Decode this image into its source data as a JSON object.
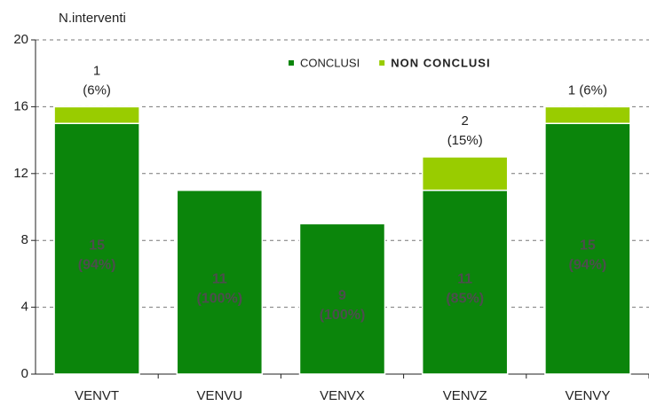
{
  "chart_data": {
    "type": "stacked_bar",
    "y_axis_label": "N.interventi",
    "categories": [
      "VENVT",
      "VENVU",
      "VENVX",
      "VENVZ",
      "VENVY"
    ],
    "series": [
      {
        "name": "CONCLUSI",
        "color": "#0b850b",
        "values": [
          15,
          11,
          9,
          11,
          15
        ],
        "value_labels": [
          [
            "15",
            "(94%)"
          ],
          [
            "11",
            "(100%)"
          ],
          [
            "9",
            "(100%)"
          ],
          [
            "11",
            "(85%)"
          ],
          [
            "15",
            "(94%)"
          ]
        ]
      },
      {
        "name": "NON CONCLUSI",
        "color": "#99cc00",
        "values": [
          1,
          null,
          null,
          2,
          1
        ],
        "value_labels": [
          [
            "1",
            "(6%)"
          ],
          null,
          null,
          [
            "2",
            "(15%)"
          ],
          [
            "1 (6%)"
          ]
        ]
      }
    ],
    "ylim": [
      0,
      20
    ],
    "yticks": [
      0,
      4,
      8,
      12,
      16,
      20
    ],
    "grid": true
  }
}
